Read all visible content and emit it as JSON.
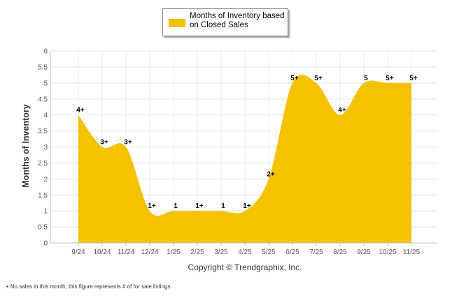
{
  "chart_data": {
    "type": "area",
    "series_name": "Months of Inventory based on Closed Sales",
    "ylabel": "Months of Inventory",
    "xlabel": "Copyright © Trendgraphix, Inc.",
    "ylim": [
      0,
      6
    ],
    "yticks": [
      "0",
      "0.5",
      "1",
      "1.5",
      "2",
      "2.5",
      "3",
      "3.5",
      "4",
      "4.5",
      "5",
      "5.5",
      "6"
    ],
    "categories": [
      "9/24",
      "10/24",
      "11/24",
      "12/24",
      "1/25",
      "2/25",
      "3/25",
      "4/25",
      "5/25",
      "6/25",
      "7/25",
      "8/25",
      "9/25",
      "10/25",
      "11/25"
    ],
    "values": [
      4,
      3,
      3,
      1,
      1,
      1,
      1,
      1,
      2,
      5,
      5,
      4,
      5,
      5,
      5
    ],
    "labels": [
      "4+",
      "3+",
      "3+",
      "1+",
      "1",
      "1+",
      "1",
      "1+",
      "2+",
      "5+",
      "5+",
      "4+",
      "5",
      "5+",
      "5+"
    ],
    "fill_color": "#f5c200",
    "grid": true,
    "footnote": "+  No sales in this month, this figure represents # of for sale listings"
  }
}
